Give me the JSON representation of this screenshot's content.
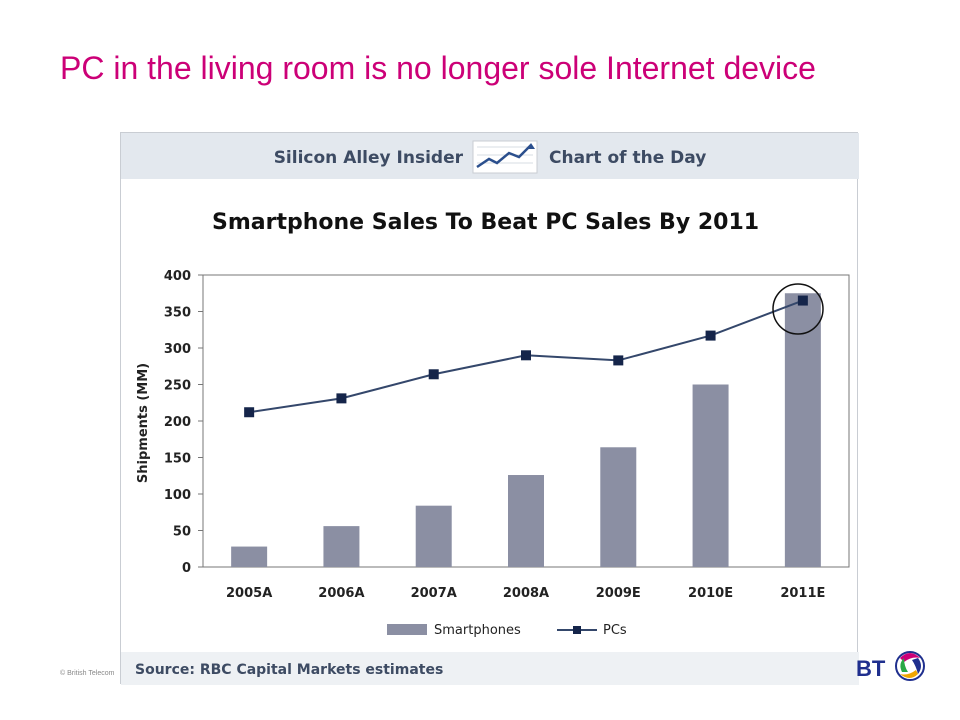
{
  "slide": {
    "title": "PC in the living room is no longer sole Internet device",
    "copyright": "© British Telecom",
    "logo_text": "BT"
  },
  "banner": {
    "left_text": "Silicon Alley Insider",
    "right_text": "Chart of the Day"
  },
  "source": "Source: RBC Capital Markets estimates",
  "colors": {
    "title": "#cc0077",
    "banner_bg": "#e3e8ee",
    "bar": "#8b8fa3",
    "line": "#34476b",
    "marker": "#15254a",
    "logo_blue": "#1f2f8e"
  },
  "chart_data": {
    "type": "bar",
    "title": "Smartphone Sales To Beat PC Sales By 2011",
    "ylabel": "Shipments (MM)",
    "xlabel": "",
    "categories": [
      "2005A",
      "2006A",
      "2007A",
      "2008A",
      "2009E",
      "2010E",
      "2011E"
    ],
    "series": [
      {
        "name": "Smartphones",
        "type": "bar",
        "values": [
          28,
          56,
          84,
          126,
          164,
          250,
          375
        ]
      },
      {
        "name": "PCs",
        "type": "line",
        "values": [
          212,
          231,
          264,
          290,
          283,
          317,
          365
        ]
      }
    ],
    "ylim": [
      0,
      400
    ],
    "yticks": [
      0,
      50,
      100,
      150,
      200,
      250,
      300,
      350,
      400
    ],
    "grid": false,
    "legend_position": "bottom",
    "annotation": "circle around 2011E crossover"
  }
}
